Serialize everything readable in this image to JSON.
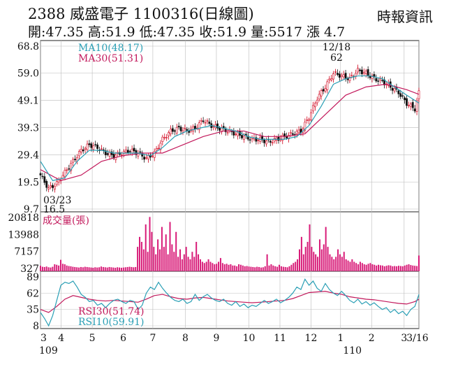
{
  "header": {
    "title": "2388  威盛電子 1100316(日線圖)",
    "ohlc": "開:47.35 高:51.9 低:47.35 收:51.9 量:5517 漲 4.7",
    "source": "時報資訊"
  },
  "chart_data": [
    {
      "type": "candlestick",
      "panel": "price",
      "y_ticks": [
        "68.8",
        "59.0",
        "49.1",
        "39.3",
        "29.4",
        "19.5",
        "9.7"
      ],
      "ylim": [
        9.7,
        68.8
      ],
      "legend": [
        {
          "name": "MA10(48.17)",
          "color": "#2a9fb5"
        },
        {
          "name": "MA30(51.31)",
          "color": "#c2185b"
        }
      ],
      "annotations": [
        {
          "label": "12/18",
          "value": "62"
        },
        {
          "label": "03/23",
          "value": "16.5"
        }
      ],
      "close_path": [
        [
          0,
          22
        ],
        [
          4,
          17
        ],
        [
          8,
          19
        ],
        [
          12,
          23
        ],
        [
          16,
          27
        ],
        [
          20,
          31
        ],
        [
          24,
          33
        ],
        [
          28,
          32
        ],
        [
          32,
          30
        ],
        [
          36,
          29
        ],
        [
          40,
          30
        ],
        [
          44,
          31
        ],
        [
          48,
          30
        ],
        [
          52,
          28
        ],
        [
          56,
          30
        ],
        [
          60,
          35
        ],
        [
          64,
          38
        ],
        [
          68,
          39
        ],
        [
          72,
          38
        ],
        [
          76,
          39
        ],
        [
          80,
          42
        ],
        [
          84,
          40
        ],
        [
          88,
          39
        ],
        [
          92,
          38
        ],
        [
          96,
          37
        ],
        [
          100,
          36
        ],
        [
          104,
          35
        ],
        [
          108,
          35
        ],
        [
          112,
          34
        ],
        [
          116,
          35
        ],
        [
          120,
          36
        ],
        [
          124,
          37
        ],
        [
          128,
          38
        ],
        [
          132,
          43
        ],
        [
          136,
          50
        ],
        [
          140,
          54
        ],
        [
          144,
          59
        ],
        [
          148,
          58
        ],
        [
          152,
          57
        ],
        [
          156,
          60
        ],
        [
          160,
          59
        ],
        [
          164,
          57
        ],
        [
          168,
          56
        ],
        [
          172,
          54
        ],
        [
          176,
          52
        ],
        [
          180,
          48
        ],
        [
          184,
          46
        ],
        [
          186,
          51.9
        ]
      ],
      "ma10_path": [
        [
          0,
          27
        ],
        [
          6,
          20
        ],
        [
          12,
          21
        ],
        [
          18,
          27
        ],
        [
          24,
          31
        ],
        [
          30,
          31
        ],
        [
          36,
          30
        ],
        [
          42,
          30
        ],
        [
          48,
          30
        ],
        [
          54,
          29
        ],
        [
          60,
          32
        ],
        [
          66,
          36
        ],
        [
          72,
          38
        ],
        [
          78,
          39
        ],
        [
          84,
          40
        ],
        [
          90,
          39
        ],
        [
          96,
          38
        ],
        [
          102,
          36
        ],
        [
          108,
          35
        ],
        [
          114,
          35
        ],
        [
          120,
          35
        ],
        [
          126,
          36
        ],
        [
          132,
          40
        ],
        [
          138,
          47
        ],
        [
          144,
          55
        ],
        [
          150,
          57
        ],
        [
          156,
          58
        ],
        [
          162,
          58
        ],
        [
          168,
          57
        ],
        [
          174,
          54
        ],
        [
          180,
          51
        ],
        [
          186,
          48.17
        ]
      ],
      "ma30_path": [
        [
          0,
          24
        ],
        [
          10,
          20
        ],
        [
          20,
          22
        ],
        [
          30,
          27
        ],
        [
          40,
          29
        ],
        [
          50,
          30
        ],
        [
          60,
          30
        ],
        [
          70,
          33
        ],
        [
          80,
          36
        ],
        [
          90,
          38
        ],
        [
          100,
          38
        ],
        [
          110,
          36
        ],
        [
          120,
          36
        ],
        [
          130,
          37
        ],
        [
          140,
          44
        ],
        [
          150,
          51
        ],
        [
          160,
          54
        ],
        [
          170,
          55
        ],
        [
          180,
          53
        ],
        [
          186,
          51.31
        ]
      ]
    },
    {
      "type": "bar",
      "panel": "volume",
      "label": "成交量(張)",
      "y_ticks": [
        "20818",
        "13988",
        "7157",
        "327"
      ],
      "ylim": [
        327,
        20818
      ],
      "approx_values": [
        1400,
        1000,
        900,
        1100,
        800,
        700,
        1000,
        2000,
        1800,
        1500,
        3800,
        2200,
        2000,
        1500,
        1300,
        1200,
        1000,
        900,
        800,
        700,
        900,
        800,
        1000,
        900,
        800,
        700,
        600,
        800,
        700,
        800,
        1100,
        900,
        800,
        700,
        900,
        800,
        700,
        600,
        800,
        700,
        600,
        700,
        800,
        900,
        1000,
        900,
        800,
        900,
        9000,
        13000,
        11000,
        8000,
        18000,
        7000,
        21000,
        15000,
        9000,
        6000,
        12000,
        8000,
        17000,
        9000,
        14000,
        6000,
        19000,
        10000,
        7000,
        15000,
        5000,
        8000,
        4000,
        6000,
        9000,
        5000,
        4000,
        7000,
        5000,
        11000,
        6000,
        4000,
        3000,
        2500,
        3000,
        4000,
        3000,
        2500,
        2000,
        2200,
        3000,
        4500,
        2500,
        2000,
        2200,
        1800,
        2000,
        1500,
        1500,
        1200,
        2000,
        1800,
        1500,
        1200,
        1300,
        1100,
        1000,
        900,
        800,
        1000,
        900,
        700,
        800,
        1200,
        6000,
        1500,
        2000,
        1500,
        1200,
        1000,
        1800,
        1200,
        1000,
        900,
        800,
        1200,
        1800,
        2500,
        3000,
        4000,
        8000,
        13000,
        6000,
        9000,
        11000,
        18000,
        9000,
        7000,
        6000,
        5000,
        12000,
        8000,
        10000,
        17000,
        9000,
        6000,
        5000,
        4000,
        5000,
        8000,
        6000,
        5000,
        7000,
        4000,
        3500,
        3000,
        4000,
        3000,
        2500,
        2000,
        3000,
        2500,
        2000,
        1800,
        2200,
        2500,
        2000,
        1800,
        1500,
        1800,
        1600,
        1500,
        1200,
        1400,
        1600,
        1500,
        1200,
        1300,
        1200,
        1400,
        1300,
        1200,
        1500,
        1800,
        2000,
        1700,
        1500,
        1400,
        1300,
        5517
      ]
    },
    {
      "type": "line",
      "panel": "rsi",
      "y_ticks": [
        "89",
        "62",
        "35",
        "8"
      ],
      "ylim": [
        8,
        89
      ],
      "legend": [
        {
          "name": "RSI30(51.74)",
          "color": "#c2185b"
        },
        {
          "name": "RSI10(59.91)",
          "color": "#2a9fb5"
        }
      ],
      "series": [
        {
          "name": "RSI10",
          "values": [
            [
              0,
              30
            ],
            [
              2,
              20
            ],
            [
              4,
              8
            ],
            [
              6,
              25
            ],
            [
              8,
              50
            ],
            [
              10,
              75
            ],
            [
              12,
              80
            ],
            [
              14,
              78
            ],
            [
              16,
              82
            ],
            [
              18,
              72
            ],
            [
              20,
              60
            ],
            [
              22,
              55
            ],
            [
              24,
              48
            ],
            [
              26,
              50
            ],
            [
              28,
              42
            ],
            [
              30,
              45
            ],
            [
              32,
              38
            ],
            [
              34,
              45
            ],
            [
              36,
              50
            ],
            [
              38,
              52
            ],
            [
              40,
              48
            ],
            [
              42,
              45
            ],
            [
              44,
              50
            ],
            [
              46,
              48
            ],
            [
              48,
              35
            ],
            [
              50,
              42
            ],
            [
              52,
              62
            ],
            [
              54,
              72
            ],
            [
              56,
              68
            ],
            [
              58,
              80
            ],
            [
              60,
              70
            ],
            [
              62,
              62
            ],
            [
              64,
              55
            ],
            [
              66,
              50
            ],
            [
              68,
              48
            ],
            [
              70,
              52
            ],
            [
              72,
              45
            ],
            [
              74,
              48
            ],
            [
              76,
              60
            ],
            [
              78,
              50
            ],
            [
              80,
              56
            ],
            [
              82,
              60
            ],
            [
              84,
              54
            ],
            [
              86,
              50
            ],
            [
              88,
              48
            ],
            [
              90,
              52
            ],
            [
              92,
              45
            ],
            [
              94,
              42
            ],
            [
              96,
              48
            ],
            [
              98,
              40
            ],
            [
              100,
              44
            ],
            [
              102,
              38
            ],
            [
              104,
              42
            ],
            [
              106,
              40
            ],
            [
              108,
              45
            ],
            [
              110,
              50
            ],
            [
              112,
              45
            ],
            [
              114,
              48
            ],
            [
              116,
              52
            ],
            [
              118,
              46
            ],
            [
              120,
              50
            ],
            [
              122,
              55
            ],
            [
              124,
              62
            ],
            [
              126,
              72
            ],
            [
              128,
              68
            ],
            [
              130,
              85
            ],
            [
              132,
              75
            ],
            [
              134,
              82
            ],
            [
              136,
              70
            ],
            [
              138,
              65
            ],
            [
              140,
              78
            ],
            [
              142,
              68
            ],
            [
              144,
              62
            ],
            [
              146,
              58
            ],
            [
              148,
              65
            ],
            [
              150,
              58
            ],
            [
              152,
              50
            ],
            [
              154,
              46
            ],
            [
              156,
              52
            ],
            [
              158,
              44
            ],
            [
              160,
              48
            ],
            [
              162,
              42
            ],
            [
              164,
              46
            ],
            [
              166,
              40
            ],
            [
              168,
              35
            ],
            [
              170,
              38
            ],
            [
              172,
              30
            ],
            [
              174,
              35
            ],
            [
              176,
              28
            ],
            [
              178,
              32
            ],
            [
              180,
              25
            ],
            [
              182,
              35
            ],
            [
              184,
              40
            ],
            [
              186,
              59.91
            ]
          ]
        },
        {
          "name": "RSI30",
          "values": [
            [
              0,
              35
            ],
            [
              4,
              30
            ],
            [
              8,
              40
            ],
            [
              12,
              52
            ],
            [
              16,
              58
            ],
            [
              20,
              55
            ],
            [
              24,
              52
            ],
            [
              28,
              50
            ],
            [
              32,
              49
            ],
            [
              36,
              50
            ],
            [
              40,
              49
            ],
            [
              44,
              48
            ],
            [
              48,
              47
            ],
            [
              52,
              52
            ],
            [
              56,
              58
            ],
            [
              60,
              60
            ],
            [
              64,
              56
            ],
            [
              68,
              53
            ],
            [
              72,
              52
            ],
            [
              76,
              54
            ],
            [
              80,
              55
            ],
            [
              84,
              53
            ],
            [
              88,
              51
            ],
            [
              92,
              49
            ],
            [
              96,
              48
            ],
            [
              100,
              47
            ],
            [
              104,
              46
            ],
            [
              108,
              47
            ],
            [
              112,
              48
            ],
            [
              116,
              49
            ],
            [
              120,
              50
            ],
            [
              124,
              53
            ],
            [
              128,
              58
            ],
            [
              132,
              63
            ],
            [
              136,
              64
            ],
            [
              140,
              65
            ],
            [
              144,
              62
            ],
            [
              148,
              60
            ],
            [
              152,
              56
            ],
            [
              156,
              54
            ],
            [
              160,
              52
            ],
            [
              164,
              51
            ],
            [
              168,
              49
            ],
            [
              172,
              47
            ],
            [
              176,
              45
            ],
            [
              180,
              44
            ],
            [
              184,
              48
            ],
            [
              186,
              51.74
            ]
          ]
        }
      ]
    }
  ],
  "x_axis": {
    "months": [
      "3",
      "4",
      "5",
      "6",
      "7",
      "8",
      "9",
      "10",
      "11",
      "12",
      "1",
      "2",
      "3",
      "3/16"
    ],
    "years": [
      "109",
      "110"
    ]
  }
}
